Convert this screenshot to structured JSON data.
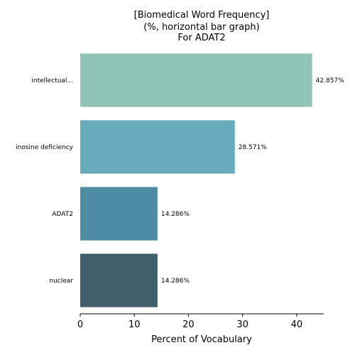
{
  "chart_data": {
    "type": "bar",
    "orientation": "horizontal",
    "title_lines": [
      "[Biomedical Word Frequency]",
      "(%, horizontal bar graph)",
      "For ADAT2"
    ],
    "categories": [
      "intellectual...",
      "inosine deficiency",
      "ADAT2",
      "nuclear"
    ],
    "values": [
      42.857,
      28.571,
      14.286,
      14.286
    ],
    "value_labels": [
      "42.857%",
      "28.571%",
      "14.286%",
      "14.286%"
    ],
    "colors": [
      "#91c4b9",
      "#68abbd",
      "#4e8ba4",
      "#405f6a"
    ],
    "xlabel": "Percent of Vocabulary",
    "xticks": [
      0,
      10,
      20,
      30,
      40
    ],
    "xlim": [
      0,
      45
    ],
    "grid": false
  }
}
